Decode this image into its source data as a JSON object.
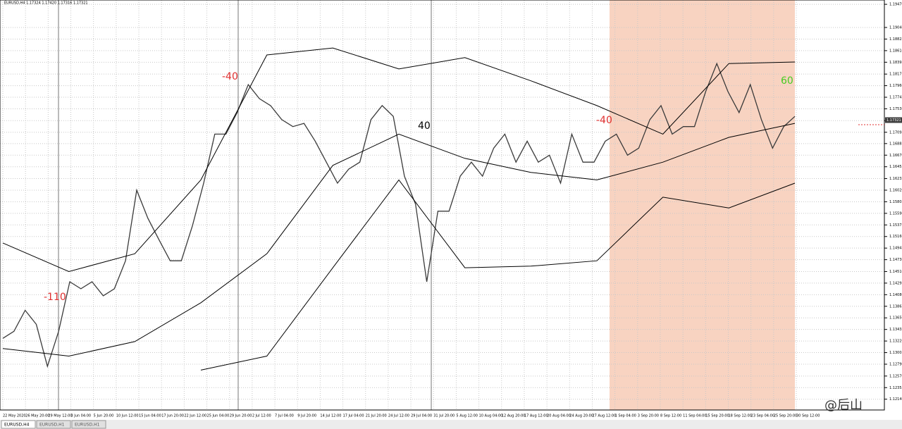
{
  "chart_data": {
    "type": "line",
    "header": "EURUSD,H4  1.17324 1.17420 1.17316 1.17321",
    "ylim": [
      1.1194,
      1.1955
    ],
    "yticks": [
      {
        "value": 1.1947,
        "label": "1.19470"
      },
      {
        "value": 1.1904,
        "label": "1.19040"
      },
      1.18825,
      {
        "value": 1.1861,
        "label": "1.18610"
      },
      1.18395,
      1.18175,
      {
        "value": 1.1796,
        "label": "1.17960"
      },
      1.17745,
      {
        "value": 1.1753,
        "label": "1.17530"
      },
      {
        "value": 1.1731,
        "label": "1.17310"
      },
      1.17095,
      1.16885,
      {
        "value": 1.1667,
        "label": "1.16670"
      },
      1.16455,
      1.16235,
      {
        "value": 1.1602,
        "label": "1.16020"
      },
      1.15805,
      {
        "value": 1.1559,
        "label": "1.15590"
      },
      1.15375,
      {
        "value": 1.1516,
        "label": "1.15160"
      },
      1.14945,
      {
        "value": 1.1473,
        "label": "1.14730"
      },
      {
        "value": 1.1451,
        "label": "1.14510"
      },
      1.14295,
      {
        "value": 1.1408,
        "label": "1.14080"
      },
      1.13865,
      {
        "value": 1.1365,
        "label": "1.13650"
      },
      1.13435,
      {
        "value": 1.1322,
        "label": "1.13220"
      },
      1.13005,
      {
        "value": 1.1279,
        "label": "1.12790"
      },
      {
        "value": 1.1257,
        "label": "1.12570"
      },
      1.12355,
      {
        "value": 1.1214,
        "label": "1.12140"
      }
    ],
    "x_labels": [
      "22 May 2020",
      "26 May 20:00",
      "29 May 12:00",
      "3 Jun 04:00",
      "5 Jun 20:00",
      "10 Jun 12:00",
      "15 Jun 04:00",
      "17 Jun 20:00",
      "22 Jun 12:00",
      "25 Jun 04:00",
      "29 Jun 20:00",
      "2 Jul 12:00",
      "7 Jul 04:00",
      "9 Jul 20:00",
      "14 Jul 12:00",
      "17 Jul 04:00",
      "21 Jul 20:00",
      "24 Jul 12:00",
      "29 Jul 04:00",
      "31 Jul 20:00",
      "5 Aug 12:00",
      "10 Aug 04:00",
      "12 Aug 20:00",
      "17 Aug 12:00",
      "20 Aug 04:00",
      "24 Aug 20:00",
      "27 Aug 12:00",
      "1 Sep 04:00",
      "3 Sep 20:00",
      "8 Sep 12:00",
      "11 Sep 04:00",
      "15 Sep 20:00",
      "18 Sep 12:00",
      "23 Sep 04:00",
      "25 Sep 20:00",
      "30 Sep 12:00"
    ],
    "series": [
      {
        "name": "Close",
        "color": "#3a3a3a",
        "values": [
          1.1327,
          1.134,
          1.1379,
          1.1353,
          1.1275,
          1.134,
          1.1432,
          1.1419,
          1.1432,
          1.1406,
          1.1419,
          1.1471,
          1.1602,
          1.155,
          1.151,
          1.1471,
          1.1471,
          1.1536,
          1.1615,
          1.1706,
          1.1706,
          1.1746,
          1.1798,
          1.1772,
          1.1759,
          1.1733,
          1.172,
          1.1726,
          1.1693,
          1.1654,
          1.1615,
          1.1641,
          1.1654,
          1.1733,
          1.1759,
          1.1739,
          1.1628,
          1.1576,
          1.1432,
          1.1563,
          1.1563,
          1.1628,
          1.1654,
          1.1628,
          1.168,
          1.1706,
          1.1654,
          1.1693,
          1.1654,
          1.1667,
          1.1615,
          1.1706,
          1.1654,
          1.1654,
          1.1693,
          1.1706,
          1.1667,
          1.168,
          1.1733,
          1.1759,
          1.1706,
          1.172,
          1.172,
          1.1785,
          1.1837,
          1.1785,
          1.1746,
          1.1798,
          1.1733,
          1.168,
          1.172,
          1.1739
        ]
      },
      {
        "name": "Upper band",
        "color": "#000000",
        "values": [
          1.1504,
          1.1451,
          1.1484,
          1.1621,
          1.1853,
          1.1866,
          1.1827,
          1.1848,
          1.1805,
          1.1759,
          1.1706,
          1.1837,
          1.184
        ]
      },
      {
        "name": "Middle band",
        "color": "#000000",
        "values": [
          1.1308,
          1.1294,
          1.1321,
          1.1393,
          1.1484,
          1.1648,
          1.1706,
          1.1661,
          1.1635,
          1.1621,
          1.1654,
          1.17,
          1.1726
        ]
      },
      {
        "name": "Lower band",
        "color": "#000000",
        "values": [
          null,
          null,
          null,
          1.1268,
          1.1294,
          1.1458,
          1.1621,
          1.1458,
          1.1461,
          1.1471,
          1.1589,
          1.1569,
          1.1615
        ]
      }
    ],
    "current_price": 1.17321,
    "annotations": [
      {
        "text": "-110",
        "color": "#e03030"
      },
      {
        "text": "-40",
        "color": "#e03030"
      },
      {
        "text": "40",
        "color": "#000000"
      },
      {
        "text": "-40",
        "color": "#e03030"
      },
      {
        "text": "60",
        "color": "#44cc22"
      }
    ],
    "grid": true
  },
  "tabs": [
    "EURUSD,H4",
    "EURUSD,H1",
    "EURUSD,H1"
  ],
  "watermark": "@后山"
}
